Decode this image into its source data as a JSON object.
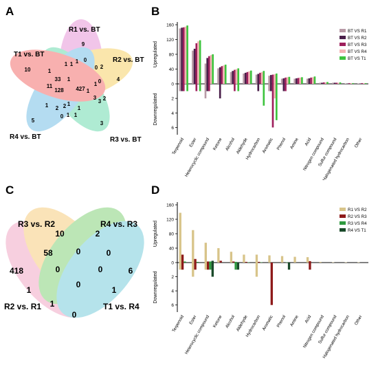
{
  "panels": {
    "A": "A",
    "B": "B",
    "C": "C",
    "D": "D"
  },
  "venn5": {
    "sets": [
      {
        "name": "R1 vs. BT",
        "color": "#e27fd0"
      },
      {
        "name": "R2 vs. BT",
        "color": "#f5c84a"
      },
      {
        "name": "R3 vs. BT",
        "color": "#4fd3a0"
      },
      {
        "name": "R4 vs. BT",
        "color": "#5ab3e2"
      },
      {
        "name": "T1 vs. BT",
        "color": "#f0524f"
      }
    ],
    "counts": [
      "9",
      "1",
      "0",
      "2",
      "4",
      "0",
      "2",
      "3",
      "3",
      "1",
      "5",
      "0",
      "1",
      "1",
      "2",
      "2",
      "1",
      "1",
      "128",
      "33",
      "1",
      "1",
      "1",
      "1",
      "0",
      "427",
      "1",
      "3",
      "1",
      "11",
      "10"
    ]
  },
  "venn4": {
    "sets": [
      {
        "name": "R3 vs. R2",
        "color": "#f7c873"
      },
      {
        "name": "R4 vs. R3",
        "color": "#7ccf6f"
      },
      {
        "name": "R2 vs. R1",
        "color": "#f0a0c0"
      },
      {
        "name": "T1 vs. R4",
        "color": "#6ec9d8"
      }
    ],
    "counts": [
      "10",
      "2",
      "58",
      "0",
      "0",
      "418",
      "0",
      "0",
      "6",
      "1",
      "0",
      "1",
      "1",
      "0"
    ]
  },
  "chart_data": [
    {
      "type": "bar",
      "panel": "B",
      "categories": [
        "Terpenoid",
        "Ester",
        "Heterocyclic compound",
        "Ketone",
        "Alcohol",
        "Aldehyde",
        "Hydrocarbon",
        "Aromatic",
        "Phenol",
        "Amine",
        "Acid",
        "Nitrogen compound",
        "Sulfur compound",
        "Halogenated hydrocarbon",
        "Other"
      ],
      "ylabel_up": "Upregulated",
      "ylabel_down": "Downregulated",
      "up_ticks": [
        "160",
        "120",
        "80",
        "40",
        "0"
      ],
      "down_ticks": [
        "2",
        "4",
        "6"
      ],
      "up_range": [
        0,
        160
      ],
      "down_range": [
        0,
        7
      ],
      "legend_position": "top-right",
      "series": [
        {
          "name": "BT VS R1",
          "color": "#b89aa6",
          "up": [
            150,
            90,
            55,
            42,
            32,
            28,
            25,
            22,
            14,
            14,
            14,
            3,
            3,
            1,
            1
          ],
          "down": [
            1,
            0,
            2,
            0,
            0,
            0,
            0,
            1,
            0,
            0,
            0,
            0,
            0,
            0,
            0
          ]
        },
        {
          "name": "BT VS R2",
          "color": "#4a1f4a",
          "up": [
            152,
            95,
            70,
            45,
            35,
            30,
            27,
            24,
            15,
            15,
            15,
            3,
            3,
            1,
            1
          ],
          "down": [
            1,
            0,
            1,
            2,
            0,
            0,
            1,
            1,
            1,
            0,
            0,
            0,
            0,
            0,
            0
          ]
        },
        {
          "name": "BT VS R3",
          "color": "#9e1f5c",
          "up": [
            153,
            110,
            75,
            48,
            38,
            32,
            30,
            25,
            17,
            16,
            17,
            4,
            3,
            2,
            2
          ],
          "down": [
            1,
            1,
            1,
            0,
            1,
            0,
            0,
            6,
            1,
            0,
            0,
            0,
            0,
            0,
            0
          ]
        },
        {
          "name": "BT VS R4",
          "color": "#f4b3b3",
          "up": [
            155,
            115,
            78,
            50,
            40,
            34,
            32,
            26,
            18,
            17,
            18,
            4,
            3,
            2,
            2
          ],
          "down": [
            0,
            0,
            0,
            0,
            0,
            0,
            0,
            2,
            0,
            0,
            0,
            0,
            0,
            0,
            0
          ]
        },
        {
          "name": "BT VS T1",
          "color": "#3ec43e",
          "up": [
            158,
            118,
            80,
            52,
            42,
            36,
            35,
            28,
            19,
            18,
            20,
            5,
            4,
            2,
            2
          ],
          "down": [
            1,
            1,
            0,
            0,
            1,
            0,
            3,
            5,
            0,
            0,
            0,
            0,
            0,
            0,
            0
          ]
        }
      ]
    },
    {
      "type": "bar",
      "panel": "D",
      "categories": [
        "Terpenoid",
        "Ester",
        "Heterocyclic compound",
        "Ketone",
        "Alcohol",
        "Aldehyde",
        "Hydrocarbon",
        "Aromatic",
        "Phenol",
        "Amine",
        "Acid",
        "Nitrogen compound",
        "Sulfur compound",
        "Halogenated hydrocarbon",
        "Other"
      ],
      "ylabel_up": "Upregulated",
      "ylabel_down": "Downregulated",
      "up_ticks": [
        "160",
        "120",
        "80",
        "40",
        "0"
      ],
      "down_ticks": [
        "2",
        "4",
        "6"
      ],
      "up_range": [
        0,
        160
      ],
      "down_range": [
        0,
        7
      ],
      "legend_position": "top-right",
      "series": [
        {
          "name": "R1 VS R2",
          "color": "#d8c48a",
          "up": [
            138,
            90,
            55,
            40,
            30,
            22,
            22,
            20,
            18,
            16,
            15,
            2,
            1,
            1,
            1
          ],
          "down": [
            1,
            2,
            1,
            0,
            0,
            0,
            2,
            0,
            0,
            0,
            0,
            0,
            0,
            0,
            0
          ]
        },
        {
          "name": "R2 VS R3",
          "color": "#8e1a1a",
          "up": [
            22,
            10,
            3,
            5,
            3,
            2,
            2,
            0,
            0,
            0,
            4,
            0,
            0,
            0,
            0
          ],
          "down": [
            1,
            1,
            1,
            0,
            0,
            0,
            0,
            6,
            0,
            0,
            1,
            0,
            0,
            0,
            0
          ]
        },
        {
          "name": "R3 VS R4",
          "color": "#2f9a3f",
          "up": [
            3,
            2,
            3,
            0,
            2,
            1,
            1,
            0,
            1,
            0,
            0,
            0,
            0,
            0,
            0
          ],
          "down": [
            0,
            0,
            1,
            0,
            1,
            0,
            0,
            0,
            0,
            0,
            0,
            0,
            0,
            0,
            0
          ]
        },
        {
          "name": "R4 VS T1",
          "color": "#1a4a2a",
          "up": [
            0,
            0,
            5,
            0,
            0,
            0,
            0,
            0,
            0,
            0,
            0,
            0,
            0,
            0,
            0
          ],
          "down": [
            0,
            0,
            2,
            0,
            1,
            0,
            0,
            0,
            1,
            0,
            0,
            0,
            0,
            0,
            0
          ]
        }
      ]
    }
  ]
}
